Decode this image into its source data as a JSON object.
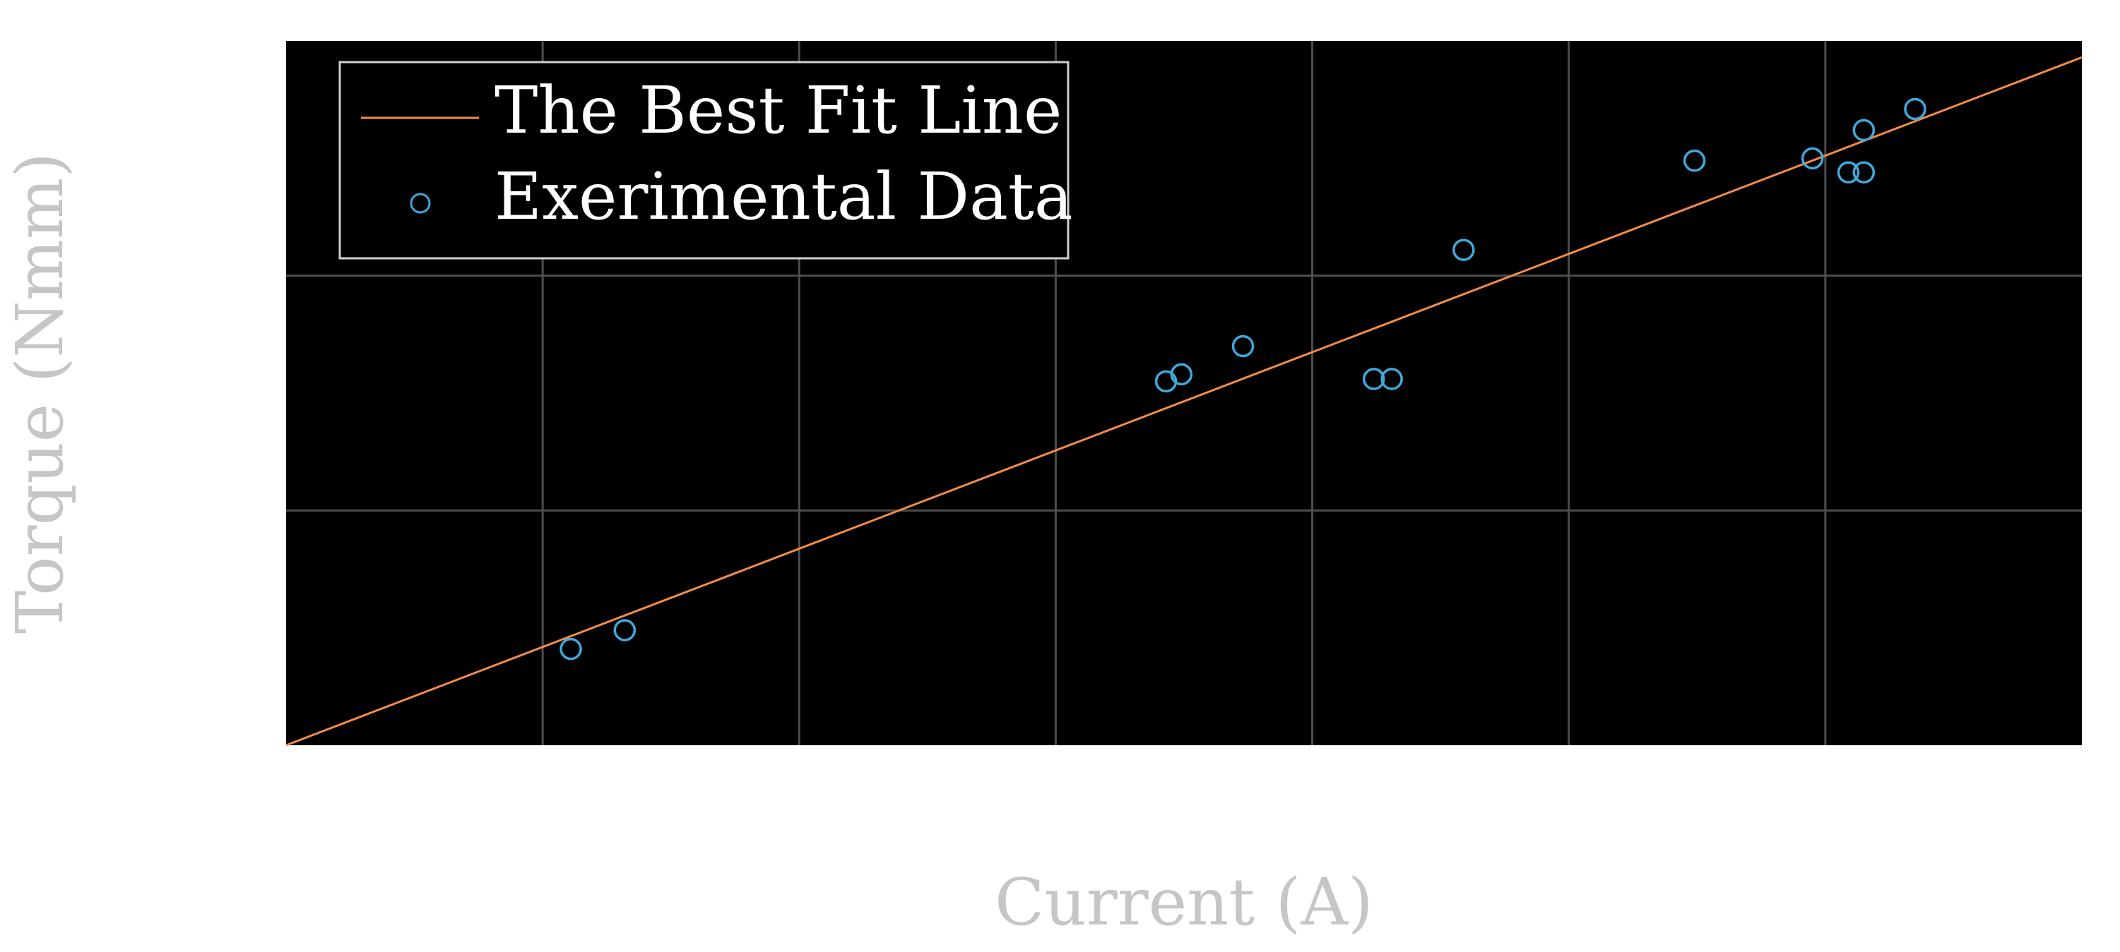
{
  "chart_data": {
    "type": "scatter",
    "title": "",
    "xlabel": "Current (A)",
    "ylabel": "Torque (Nmm)",
    "xlim": [
      0,
      7
    ],
    "ylim": [
      0,
      3
    ],
    "x_gridlines": [
      1,
      2,
      3,
      4,
      5,
      6
    ],
    "y_gridlines": [
      1,
      2
    ],
    "grid": true,
    "legend_position": "upper-left",
    "colors": {
      "plot_background": "#000000",
      "grid": "#4d4d4d",
      "fit_line": "#f28c4a",
      "markers": "#3fa9dc",
      "axis_labels": "#c6c6c6",
      "legend_text": "#ffffff",
      "legend_border": "#cfcfcf"
    },
    "series": [
      {
        "name": "The Best Fit Line",
        "type": "line",
        "x": [
          0,
          7
        ],
        "y": [
          0,
          2.93
        ]
      },
      {
        "name": "Exerimental Data",
        "type": "scatter",
        "marker": "circle-open",
        "x": [
          1.11,
          1.32,
          3.43,
          3.49,
          3.73,
          4.24,
          4.31,
          4.59,
          5.49,
          5.95,
          6.09,
          6.15,
          6.15,
          6.35
        ],
        "y": [
          0.41,
          0.49,
          1.55,
          1.58,
          1.7,
          1.56,
          1.56,
          2.11,
          2.49,
          2.5,
          2.44,
          2.44,
          2.62,
          2.71
        ]
      }
    ]
  }
}
